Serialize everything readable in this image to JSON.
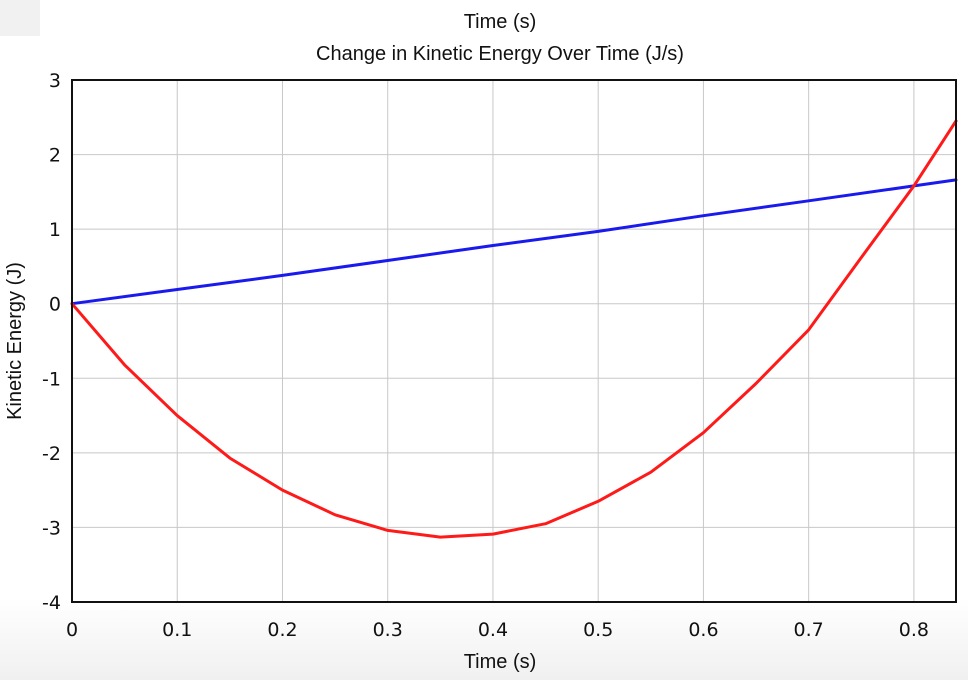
{
  "chart_data": {
    "type": "line",
    "title": "Time (s)",
    "subtitle": "Change in Kinetic Energy Over Time (J/s)",
    "xlabel": "Time (s)",
    "ylabel": "Kinetic Energy (J)",
    "xlim": [
      0,
      0.84
    ],
    "ylim": [
      -4,
      3
    ],
    "xticks": [
      "0",
      "0.1",
      "0.2",
      "0.3",
      "0.4",
      "0.5",
      "0.6",
      "0.7",
      "0.8"
    ],
    "yticks": [
      "3",
      "2",
      "1",
      "0",
      "-1",
      "-2",
      "-3",
      "-4"
    ],
    "grid": true,
    "legend": "none",
    "series": [
      {
        "color": "#1a1aee",
        "x": [
          0,
          0.1,
          0.2,
          0.3,
          0.4,
          0.5,
          0.6,
          0.7,
          0.8,
          0.84
        ],
        "y": [
          0,
          0.19,
          0.38,
          0.58,
          0.78,
          0.97,
          1.18,
          1.38,
          1.58,
          1.66
        ]
      },
      {
        "color": "#ff1a1a",
        "x": [
          0,
          0.05,
          0.1,
          0.15,
          0.2,
          0.25,
          0.3,
          0.35,
          0.4,
          0.45,
          0.5,
          0.55,
          0.6,
          0.65,
          0.7,
          0.75,
          0.8,
          0.84
        ],
        "y": [
          0,
          -0.82,
          -1.5,
          -2.07,
          -2.5,
          -2.83,
          -3.04,
          -3.13,
          -3.09,
          -2.95,
          -2.65,
          -2.26,
          -1.73,
          -1.07,
          -0.35,
          0.62,
          1.58,
          2.45
        ]
      }
    ]
  }
}
